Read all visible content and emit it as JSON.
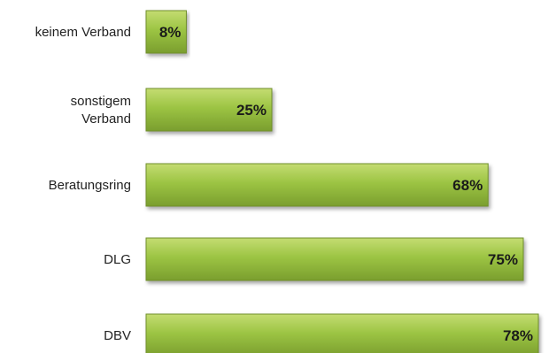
{
  "chart_data": {
    "type": "bar",
    "orientation": "horizontal",
    "categories": [
      [
        "keinem Verband"
      ],
      [
        "sonstigem",
        "Verband"
      ],
      [
        "Beratungsring"
      ],
      [
        "DLG"
      ],
      [
        "DBV"
      ]
    ],
    "values": [
      8,
      25,
      68,
      75,
      78
    ],
    "value_suffix": "%",
    "value_labels": [
      "8%",
      "25%",
      "68%",
      "75%",
      "78%"
    ],
    "title": "",
    "xlabel": "",
    "ylabel": "",
    "xlim": [
      0,
      78
    ],
    "grid": false,
    "legend": "none",
    "colors": {
      "bar_light": "#c4dc72",
      "bar_mid": "#9cc443",
      "bar_dark": "#7a9e2e",
      "bar_stroke": "#6f8f2a"
    }
  }
}
